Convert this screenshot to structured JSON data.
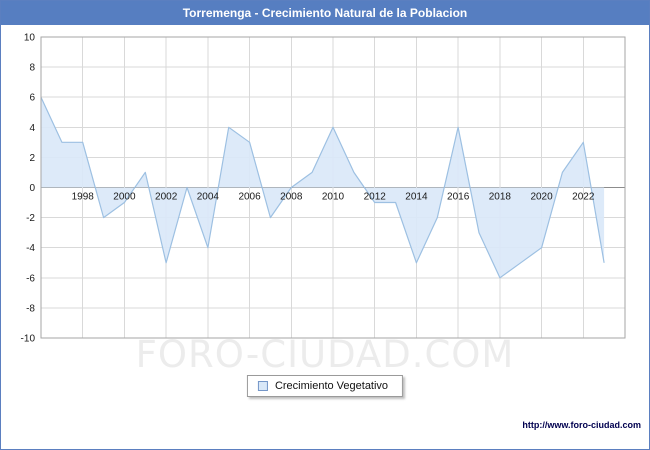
{
  "title": "Torremenga - Crecimiento Natural de la Poblacion",
  "legend": {
    "label": "Crecimiento Vegetativo"
  },
  "watermark": "FORO-CIUDAD.COM",
  "footer_url": "http://www.foro-ciudad.com",
  "colors": {
    "title_bg": "#567ec1",
    "title_text": "#ffffff",
    "line": "#9dc0e2",
    "area_fill": "#d9e8f8",
    "grid": "#d9d9d9",
    "zero_line": "#8c8c8c",
    "plot_border": "#a6a6a6",
    "axis_text": "#1a1a1a"
  },
  "chart_data": {
    "type": "area",
    "title": "Torremenga - Crecimiento Natural de la Poblacion",
    "xlabel": "",
    "ylabel": "",
    "x": [
      1996,
      1997,
      1998,
      1999,
      2000,
      2001,
      2002,
      2003,
      2004,
      2005,
      2006,
      2007,
      2008,
      2009,
      2010,
      2011,
      2012,
      2013,
      2014,
      2015,
      2016,
      2017,
      2018,
      2019,
      2020,
      2021,
      2022,
      2023
    ],
    "series": [
      {
        "name": "Crecimiento Vegetativo",
        "values": [
          6,
          3,
          3,
          -2,
          -1,
          1,
          -5,
          0,
          -4,
          4,
          3,
          -2,
          0,
          1,
          4,
          1,
          -1,
          -1,
          -5,
          -2,
          4,
          -3,
          -6,
          -5,
          -4,
          1,
          3,
          -5
        ]
      }
    ],
    "ylim": [
      -10,
      10
    ],
    "xlim": [
      1996,
      2024
    ],
    "y_ticks": [
      10,
      8,
      6,
      4,
      2,
      0,
      -2,
      -4,
      -6,
      -8,
      -10
    ],
    "x_ticks": [
      1998,
      2000,
      2002,
      2004,
      2006,
      2008,
      2010,
      2012,
      2014,
      2016,
      2018,
      2020,
      2022
    ],
    "grid": true,
    "baseline": 0,
    "legend_position": "bottom-center"
  }
}
